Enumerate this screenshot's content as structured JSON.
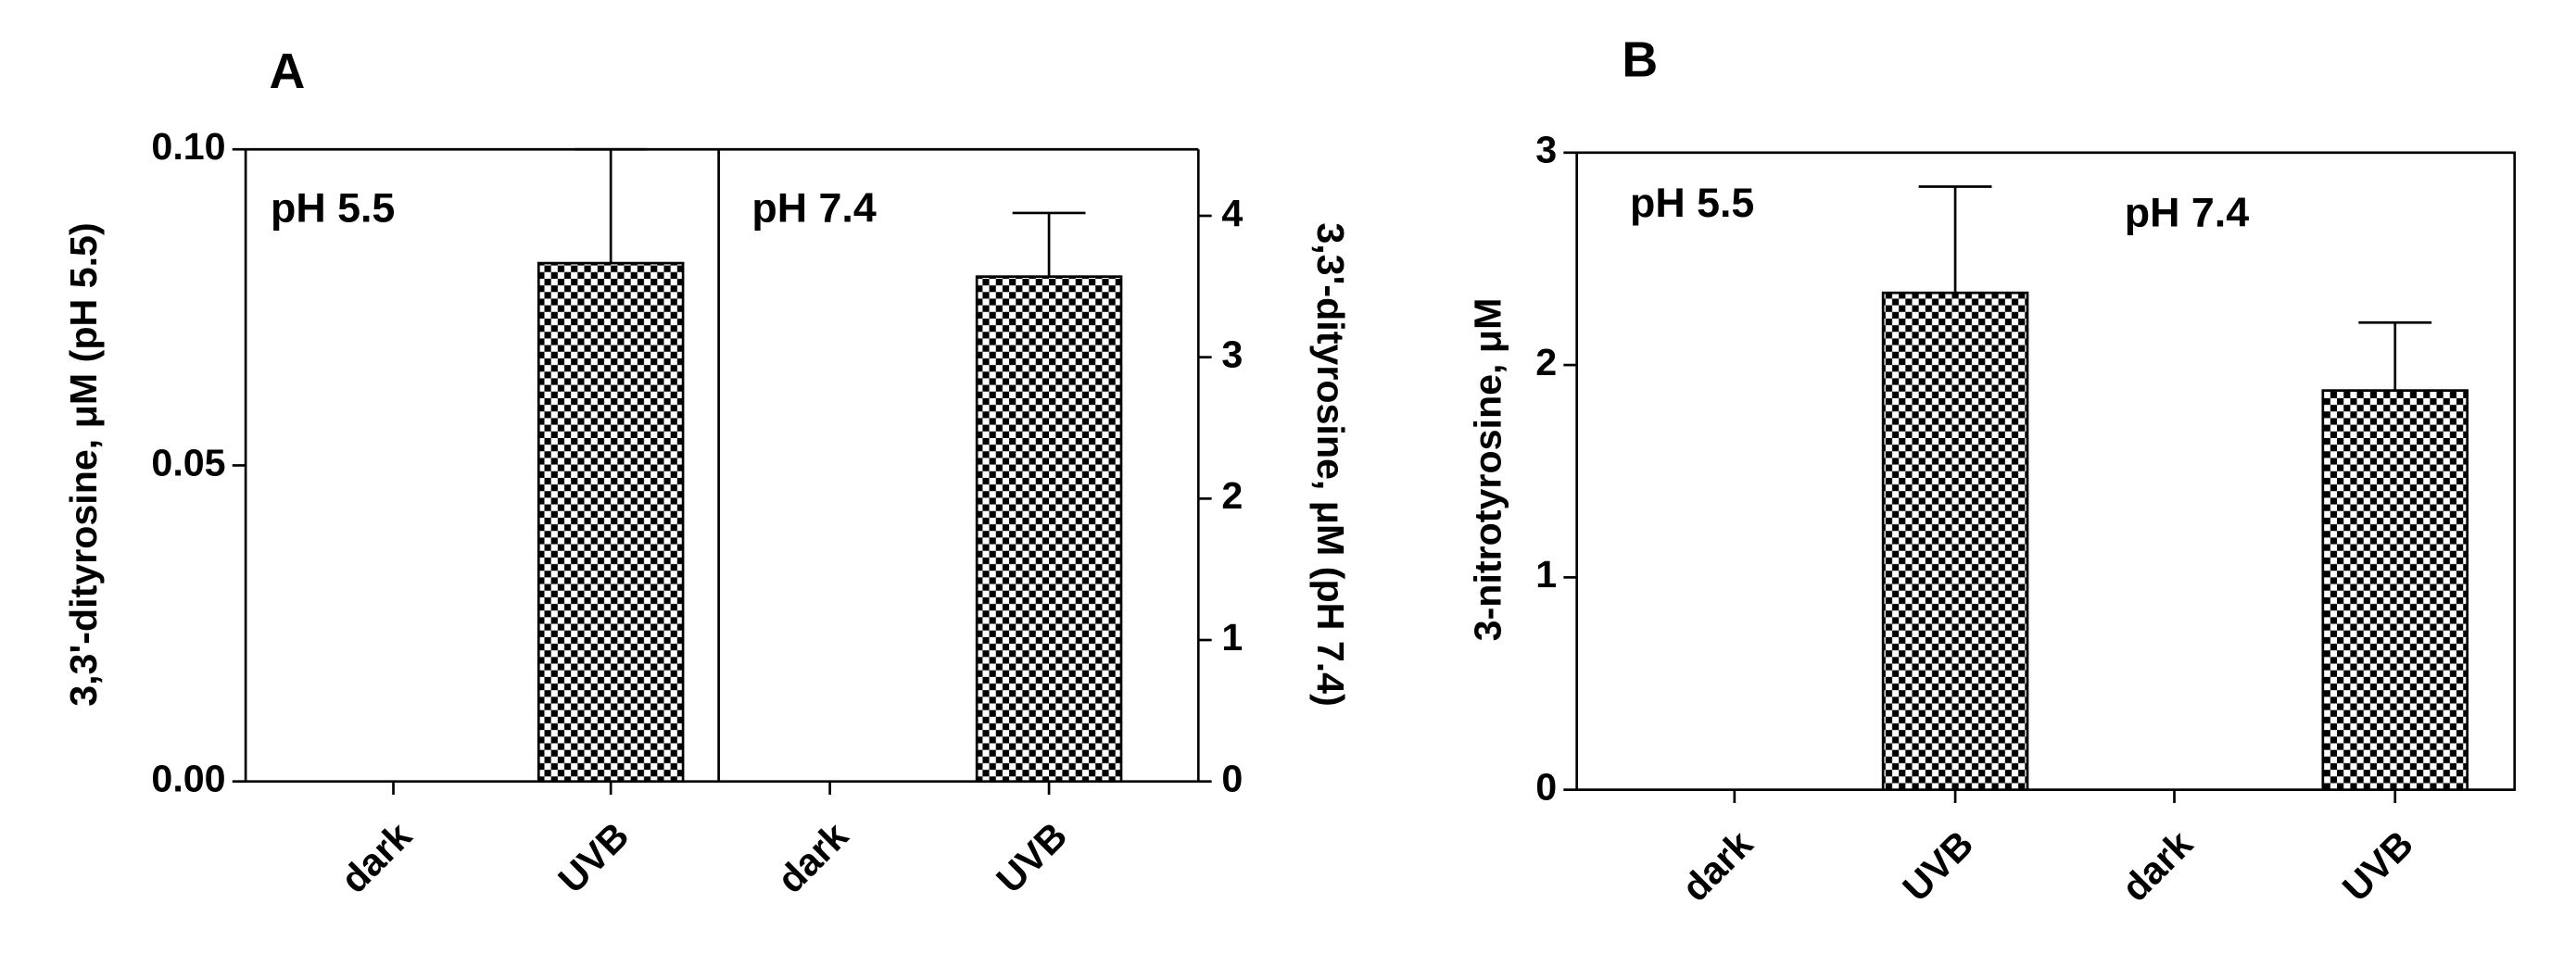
{
  "chart_data": [
    {
      "type": "bar",
      "title": "A",
      "categories": [
        "dark",
        "UVB",
        "dark",
        "UVB"
      ],
      "series": [
        {
          "name": "pH 5.5",
          "color": "#000000",
          "values": [
            0,
            0.082,
            null,
            null
          ],
          "errors": [
            null,
            0.018,
            null,
            null
          ]
        },
        {
          "name": "pH 7.4",
          "color": "#000000",
          "axis": "y2",
          "values": [
            null,
            null,
            0,
            3.57
          ],
          "errors": [
            null,
            null,
            null,
            0.45
          ]
        }
      ],
      "ylabel": "3,3'-dityrosine, μM (pH 5.5)",
      "y2label": "3,3'-dityrosine, μM (pH 7.4)",
      "ylim": [
        0,
        0.1
      ],
      "yticks": [
        {
          "value": 0,
          "label": "0.00"
        },
        {
          "value": 0.05,
          "label": "0.05"
        },
        {
          "value": 0.1,
          "label": "0.10"
        }
      ],
      "y2lim": [
        0,
        4.47
      ],
      "y2ticks": [
        0,
        1,
        2,
        3,
        4
      ],
      "pattern": "checkerboard"
    },
    {
      "type": "bar",
      "title": "B",
      "categories": [
        "dark",
        "UVB",
        "dark",
        "UVB"
      ],
      "series": [
        {
          "name": "pH 5.5",
          "color": "#000000",
          "values": [
            0,
            2.34,
            null,
            null
          ],
          "errors": [
            null,
            0.5,
            null,
            null
          ]
        },
        {
          "name": "pH 7.4",
          "color": "#000000",
          "values": [
            null,
            null,
            0,
            1.88
          ],
          "errors": [
            null,
            null,
            null,
            0.32
          ]
        }
      ],
      "ylabel": "3-nitrotyrosine, μM",
      "ylim": [
        0,
        3
      ],
      "yticks": [
        0,
        1,
        2,
        3
      ],
      "pattern": "checkerboard"
    }
  ]
}
